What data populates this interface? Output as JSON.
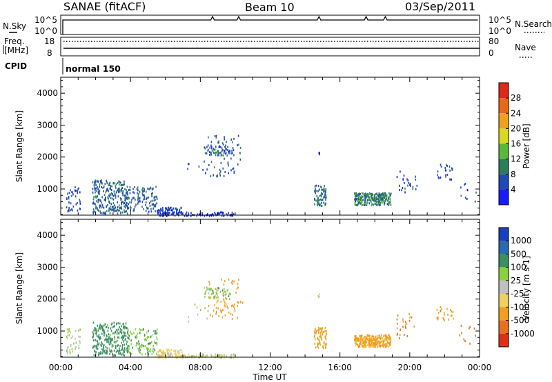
{
  "header": {
    "station": "SANAE (fitACF)",
    "beam": "Beam 10",
    "date": "03/Sep/2011"
  },
  "top_panels": {
    "nsky_label": "N.Sky",
    "nsearch_label": "N.Search",
    "freq_label_line1": "Freq.",
    "freq_label_line2": "[MHz]",
    "nave_label": "Nave",
    "cpid_label": "CPID",
    "cpid_value": "normal 150",
    "noise_left_ticks": [
      "10^5",
      "10^0"
    ],
    "noise_right_ticks": [
      "10^5",
      "10^0"
    ],
    "freq_left_ticks": [
      "18",
      "8"
    ],
    "nave_right_ticks": [
      "80",
      "0"
    ],
    "frequency_mhz": 10.0,
    "nave": 70,
    "noise_level_sky": "~10^4",
    "noise_level_search": "~10^4"
  },
  "axes": {
    "ylabel": "Slant Range [km]",
    "xlabel": "Time UT",
    "x_ticks": [
      "00:00",
      "04:00",
      "08:00",
      "12:00",
      "16:00",
      "20:00",
      "00:00"
    ],
    "y_ticks": [
      "1000",
      "2000",
      "3000",
      "4000"
    ]
  },
  "power_colorbar": {
    "label": "Power [dB]",
    "ticks": [
      "4",
      "8",
      "12",
      "16",
      "20",
      "24",
      "28"
    ],
    "colors": [
      "#1a1aff",
      "#1f48b8",
      "#2e7c5e",
      "#5ab83a",
      "#d8d820",
      "#f0a020",
      "#e86818",
      "#e02818"
    ]
  },
  "velocity_colorbar": {
    "label": "Velocity [m s-1]",
    "ticks": [
      "1000",
      "500",
      "100",
      "25",
      "-25",
      "-100",
      "-500",
      "-1000"
    ],
    "colors": [
      "#1a40c0",
      "#2a6ab0",
      "#3a9060",
      "#8ad040",
      "#c0c0c0",
      "#f0d060",
      "#f0a020",
      "#e87020",
      "#e03018"
    ]
  },
  "chart_data": {
    "type": "heatmap",
    "x_range_hours": [
      0,
      24
    ],
    "y_range_km": [
      180,
      4500
    ],
    "panels": [
      {
        "name": "Power",
        "units": "dB",
        "clusters": [
          {
            "t": [
              0.3,
              1.1
            ],
            "r": [
              300,
              1100
            ],
            "n": 40,
            "value": 6
          },
          {
            "t": [
              1.8,
              3.8
            ],
            "r": [
              250,
              1300
            ],
            "n": 260,
            "value": 8
          },
          {
            "t": [
              3.8,
              5.5
            ],
            "r": [
              300,
              1100
            ],
            "n": 110,
            "value": 7
          },
          {
            "t": [
              5.5,
              7.0
            ],
            "r": [
              180,
              450
            ],
            "n": 90,
            "value": 5
          },
          {
            "t": [
              7.0,
              10.0
            ],
            "r": [
              180,
              300
            ],
            "n": 60,
            "value": 4
          },
          {
            "t": [
              8.2,
              9.7
            ],
            "r": [
              2050,
              2400
            ],
            "n": 50,
            "value": 6
          },
          {
            "t": [
              8.4,
              10.4
            ],
            "r": [
              1400,
              2700
            ],
            "n": 70,
            "value": 7
          },
          {
            "t": [
              7.2,
              8.5
            ],
            "r": [
              1300,
              1900
            ],
            "n": 8,
            "value": 5
          },
          {
            "t": [
              14.5,
              15.2
            ],
            "r": [
              500,
              1150
            ],
            "n": 70,
            "value": 9
          },
          {
            "t": [
              14.7,
              14.8
            ],
            "r": [
              2100,
              2200
            ],
            "n": 3,
            "value": 5
          },
          {
            "t": [
              16.8,
              18.9
            ],
            "r": [
              520,
              900
            ],
            "n": 260,
            "value": 10
          },
          {
            "t": [
              19.2,
              20.4
            ],
            "r": [
              800,
              1600
            ],
            "n": 25,
            "value": 6
          },
          {
            "t": [
              21.5,
              22.5
            ],
            "r": [
              1300,
              1800
            ],
            "n": 25,
            "value": 6
          },
          {
            "t": [
              22.8,
              23.8
            ],
            "r": [
              600,
              1200
            ],
            "n": 10,
            "value": 6
          }
        ]
      },
      {
        "name": "Velocity",
        "units": "m s-1",
        "clusters": [
          {
            "t": [
              0.3,
              1.1
            ],
            "r": [
              300,
              1100
            ],
            "n": 40,
            "value": 20
          },
          {
            "t": [
              1.8,
              3.8
            ],
            "r": [
              250,
              1300
            ],
            "n": 260,
            "value": 150
          },
          {
            "t": [
              3.8,
              5.5
            ],
            "r": [
              300,
              1100
            ],
            "n": 110,
            "value": 80
          },
          {
            "t": [
              5.5,
              7.0
            ],
            "r": [
              180,
              450
            ],
            "n": 90,
            "value": -50
          },
          {
            "t": [
              7.0,
              10.0
            ],
            "r": [
              180,
              300
            ],
            "n": 60,
            "value": 10
          },
          {
            "t": [
              8.2,
              9.7
            ],
            "r": [
              2050,
              2400
            ],
            "n": 50,
            "value": 60
          },
          {
            "t": [
              8.4,
              10.4
            ],
            "r": [
              1400,
              2700
            ],
            "n": 70,
            "value": -400
          },
          {
            "t": [
              7.2,
              8.5
            ],
            "r": [
              1300,
              1900
            ],
            "n": 8,
            "value": 20
          },
          {
            "t": [
              14.5,
              15.2
            ],
            "r": [
              500,
              1150
            ],
            "n": 70,
            "value": -300
          },
          {
            "t": [
              14.7,
              14.8
            ],
            "r": [
              2100,
              2200
            ],
            "n": 3,
            "value": 20
          },
          {
            "t": [
              16.8,
              18.9
            ],
            "r": [
              520,
              900
            ],
            "n": 260,
            "value": -150
          },
          {
            "t": [
              19.2,
              20.4
            ],
            "r": [
              800,
              1600
            ],
            "n": 25,
            "value": -500
          },
          {
            "t": [
              21.5,
              22.5
            ],
            "r": [
              1300,
              1800
            ],
            "n": 25,
            "value": -450
          },
          {
            "t": [
              22.8,
              23.8
            ],
            "r": [
              600,
              1200
            ],
            "n": 10,
            "value": -900
          }
        ]
      }
    ]
  }
}
